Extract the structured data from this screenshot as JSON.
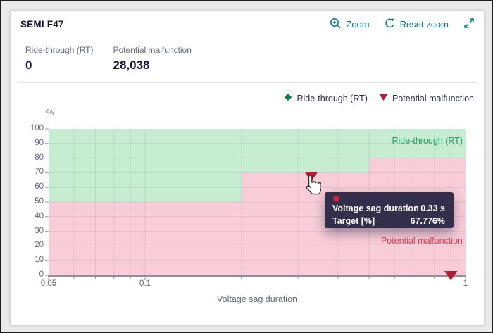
{
  "header": {
    "title": "SEMI F47",
    "zoom_label": "Zoom",
    "reset_zoom_label": "Reset zoom"
  },
  "stats": {
    "ride_through": {
      "label": "Ride-through (RT)",
      "value": "0"
    },
    "potential_malfunction": {
      "label": "Potential malfunction",
      "value": "28,038"
    }
  },
  "legend": {
    "items": [
      {
        "label": "Ride-through (RT)",
        "marker": "diamond",
        "color": "#157d45"
      },
      {
        "label": "Potential malfunction",
        "marker": "triangle-down",
        "color": "#b82039"
      }
    ]
  },
  "tooltip": {
    "rows": [
      {
        "label": "Voltage sag duration",
        "value": "0.33 s"
      },
      {
        "label": "Target [%]",
        "value": "67.776%"
      }
    ]
  },
  "chart_data": {
    "type": "area",
    "title": "SEMI F47",
    "xlabel": "Voltage sag duration",
    "ylabel": "%",
    "x_scale": "log",
    "xlim": [
      0.05,
      1
    ],
    "ylim": [
      0,
      100
    ],
    "grid": true,
    "legend_position": "top-right",
    "x_ticks": [
      {
        "v": 0.05,
        "label": "0.05"
      },
      {
        "v": 0.1,
        "label": "0.1"
      },
      {
        "v": 1,
        "label": "1"
      }
    ],
    "x_minor_ticks": [
      0.06,
      0.07,
      0.08,
      0.09,
      0.2,
      0.3,
      0.4,
      0.5,
      0.6,
      0.7,
      0.8,
      0.9
    ],
    "y_ticks": [
      0,
      10,
      20,
      30,
      40,
      50,
      60,
      70,
      80,
      90,
      100
    ],
    "boundary_steps": [
      {
        "x_start": 0.05,
        "x_end": 0.2,
        "y": 50
      },
      {
        "x_start": 0.2,
        "x_end": 0.5,
        "y": 70
      },
      {
        "x_start": 0.5,
        "x_end": 1,
        "y": 80
      }
    ],
    "regions": [
      {
        "name": "Ride-through (RT)",
        "position": "above-curve",
        "fill": "#c6ecd2",
        "label_color": "#23a066"
      },
      {
        "name": "Potential malfunction",
        "position": "below-curve",
        "fill": "#f8cdd7",
        "label_color": "#e23c56"
      }
    ],
    "markers": [
      {
        "x": 0.33,
        "y": 67.776,
        "shape": "triangle-down",
        "color": "#b01e38",
        "hovered": true
      },
      {
        "x": 0.9,
        "y": 0,
        "shape": "triangle-down",
        "color": "#b01e38",
        "hovered": false
      }
    ],
    "colors": {
      "grid": "rgba(27,21,52,0.08)",
      "axis": "#8f8f9d",
      "tick": "#9a9aa6"
    }
  }
}
